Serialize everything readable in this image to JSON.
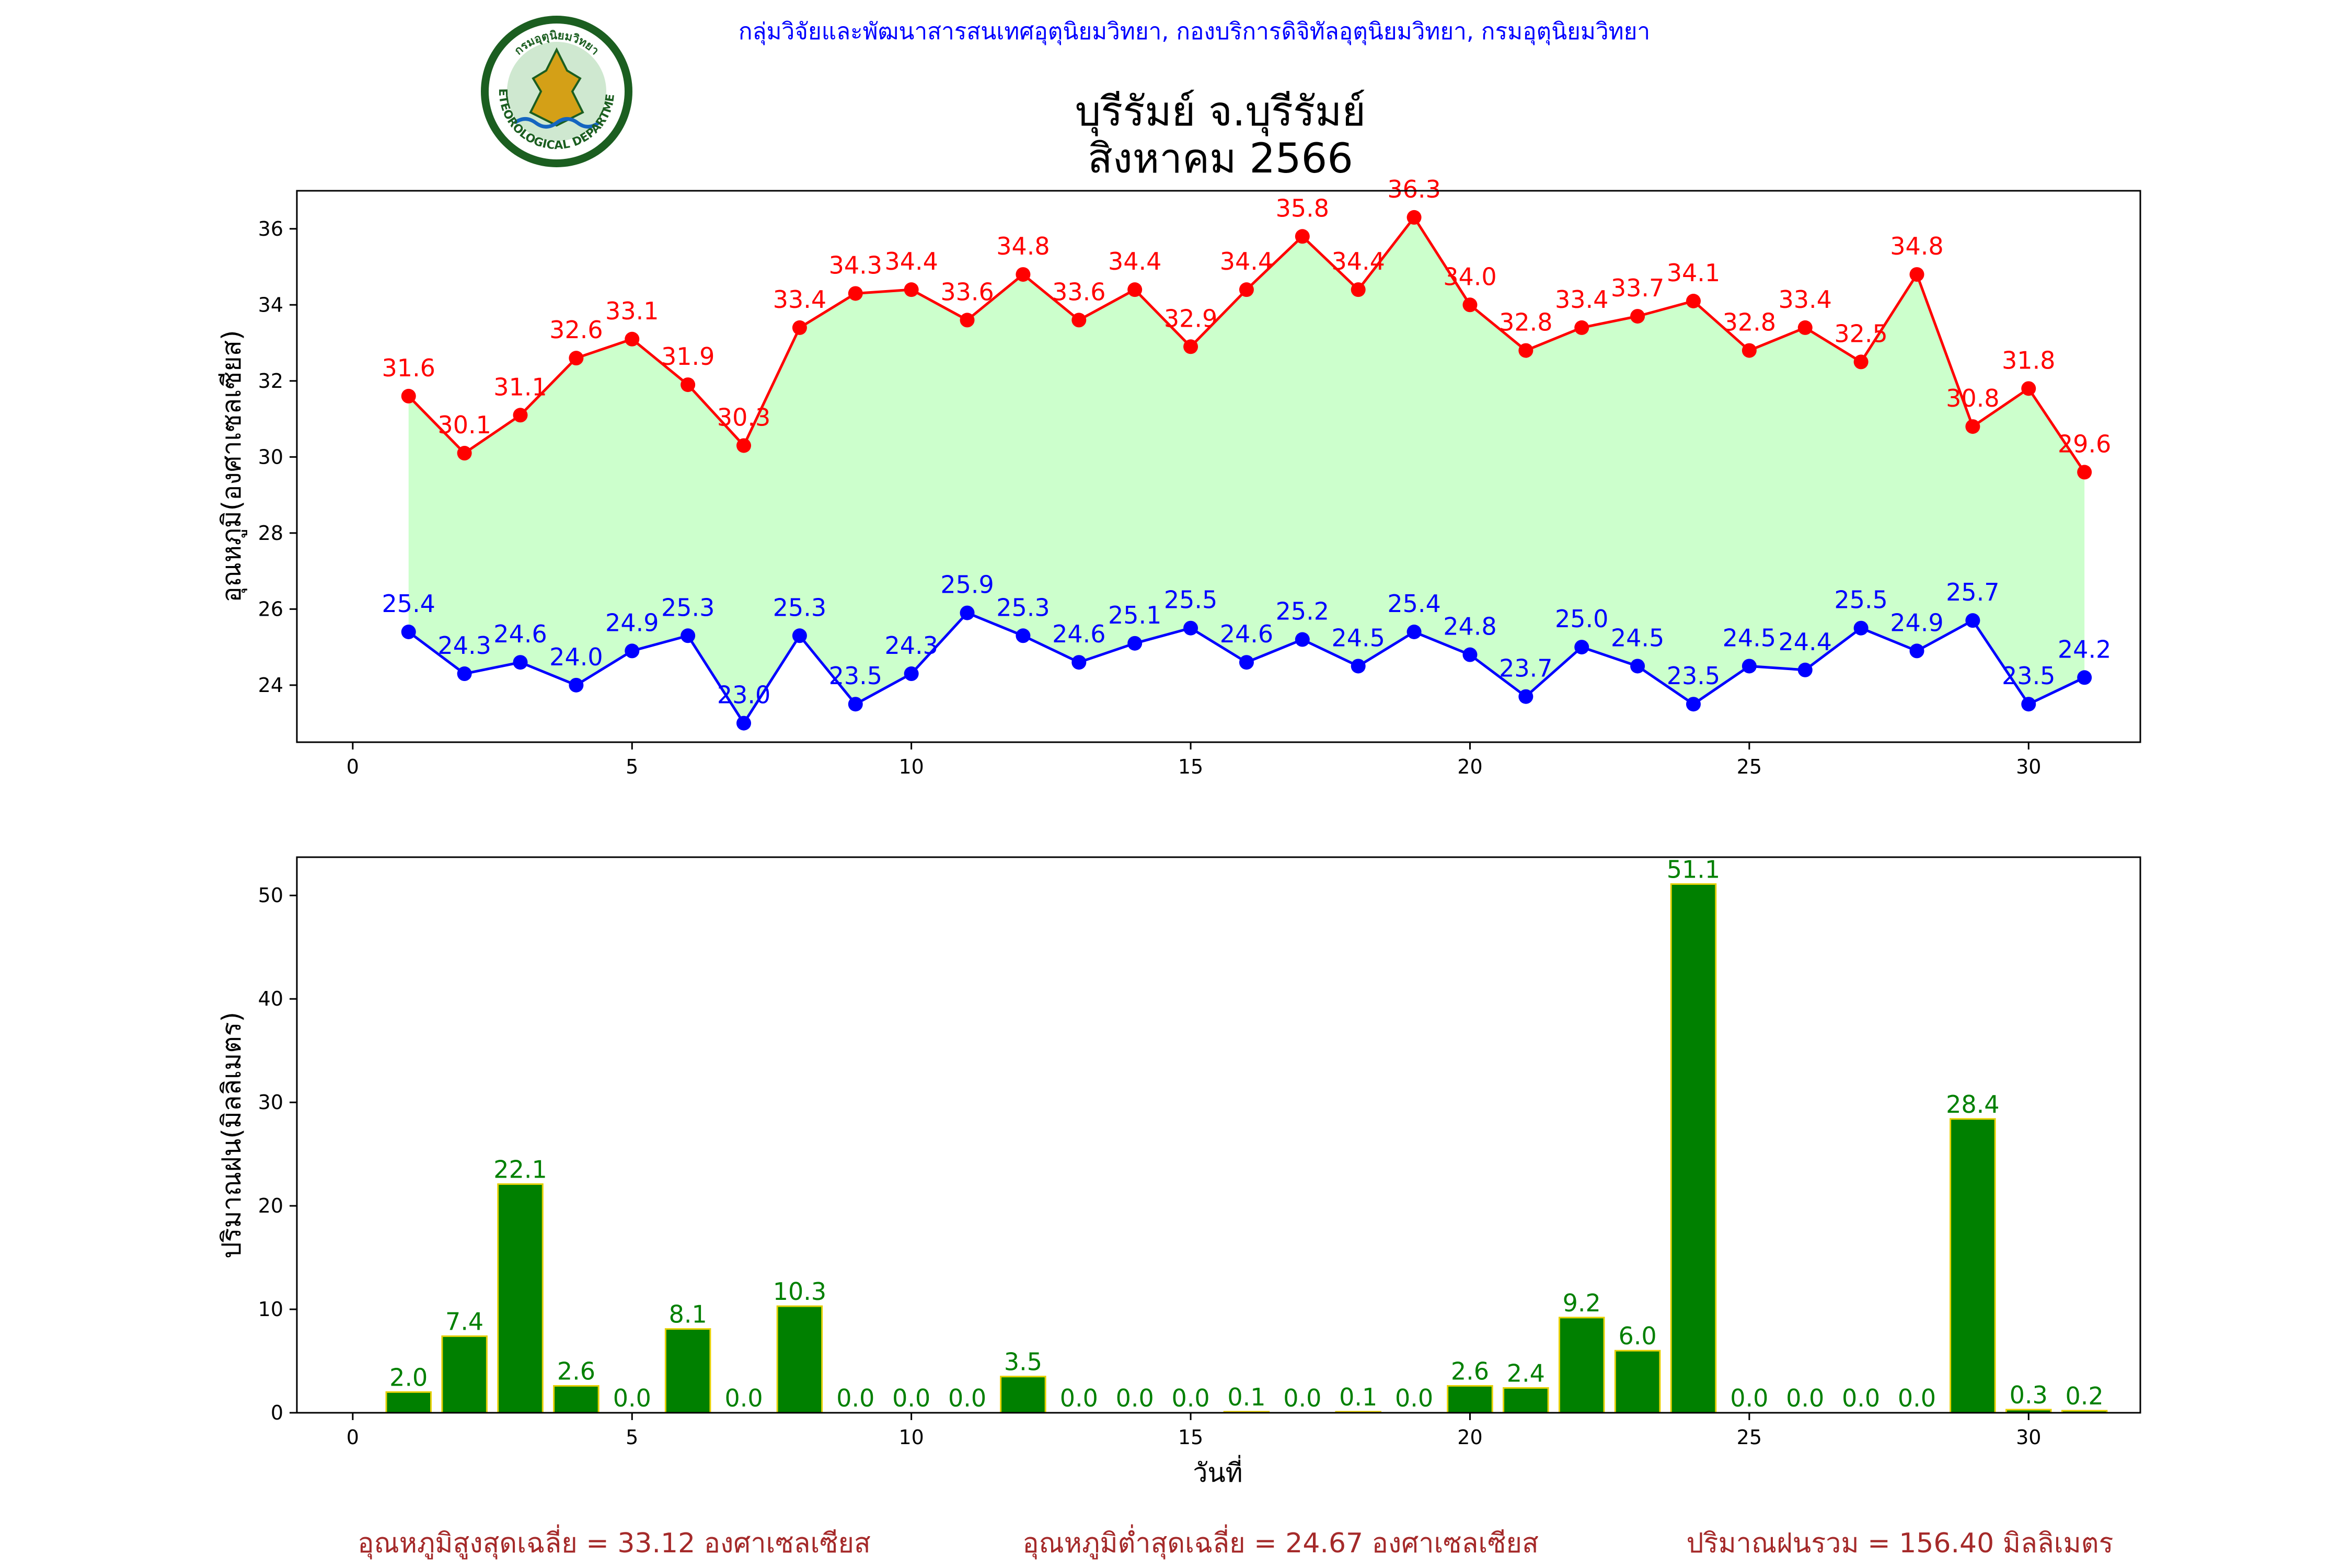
{
  "header": {
    "department": "กลุ่มวิจัยและพัฒนาสารสนเทศอุตุนิยมวิทยา, กองบริการดิจิทัลอุตุนิยมวิทยา, กรมอุตุนิยมวิทยา",
    "title_line1": "บุรีรัมย์ จ.บุรีรัมย์",
    "title_line2": "สิงหาคม 2566",
    "logo_text_top": "กรมอุตุนิยมวิทยา",
    "logo_text_bottom": "METEOROLOGICAL DEPARTMENT"
  },
  "colors": {
    "max_line": "#ff0000",
    "min_line": "#0000ff",
    "fill_between": "#ccffcc",
    "rain_bar": "#008000",
    "rain_bar_edge": "#e6d000",
    "summary_text": "#a52a2a"
  },
  "chart_data": [
    {
      "type": "line",
      "ylabel": "อุณหภูมิ(องศาเซลเซียส)",
      "xlabel": "",
      "xlim": [
        -1,
        32
      ],
      "ylim": [
        22.5,
        37
      ],
      "xticks": [
        0,
        5,
        10,
        15,
        20,
        25,
        30
      ],
      "yticks": [
        24,
        26,
        28,
        30,
        32,
        34,
        36
      ],
      "grid": false,
      "fill_between": true,
      "x": [
        1,
        2,
        3,
        4,
        5,
        6,
        7,
        8,
        9,
        10,
        11,
        12,
        13,
        14,
        15,
        16,
        17,
        18,
        19,
        20,
        21,
        22,
        23,
        24,
        25,
        26,
        27,
        28,
        29,
        30,
        31
      ],
      "series": [
        {
          "values": [
            31.6,
            30.1,
            31.1,
            32.6,
            33.1,
            31.9,
            30.3,
            33.4,
            34.3,
            34.4,
            33.6,
            34.8,
            33.6,
            34.4,
            32.9,
            34.4,
            35.8,
            34.4,
            36.3,
            34.0,
            32.8,
            33.4,
            33.7,
            34.1,
            32.8,
            33.4,
            32.5,
            34.8,
            30.8,
            31.8,
            29.6
          ]
        },
        {
          "values": [
            25.4,
            24.3,
            24.6,
            24.0,
            24.9,
            25.3,
            23.0,
            25.3,
            23.5,
            24.3,
            25.9,
            25.3,
            24.6,
            25.1,
            25.5,
            24.6,
            25.2,
            24.5,
            25.4,
            24.8,
            23.7,
            25.0,
            24.5,
            23.5,
            24.5,
            24.4,
            25.5,
            24.9,
            25.7,
            23.5,
            24.2
          ]
        }
      ]
    },
    {
      "type": "bar",
      "ylabel": "ปริมาณฝน(มิลลิเมตร)",
      "xlabel": "วันที่",
      "xlim": [
        -1,
        32
      ],
      "ylim": [
        0,
        53.7
      ],
      "xticks": [
        0,
        5,
        10,
        15,
        20,
        25,
        30
      ],
      "yticks": [
        0,
        10,
        20,
        30,
        40,
        50
      ],
      "grid": false,
      "x": [
        1,
        2,
        3,
        4,
        5,
        6,
        7,
        8,
        9,
        10,
        11,
        12,
        13,
        14,
        15,
        16,
        17,
        18,
        19,
        20,
        21,
        22,
        23,
        24,
        25,
        26,
        27,
        28,
        29,
        30,
        31
      ],
      "values": [
        2.0,
        7.4,
        22.1,
        2.6,
        0.0,
        8.1,
        0.0,
        10.3,
        0.0,
        0.0,
        0.0,
        3.5,
        0.0,
        0.0,
        0.0,
        0.1,
        0.0,
        0.1,
        0.0,
        2.6,
        2.4,
        9.2,
        6.0,
        51.1,
        0.0,
        0.0,
        0.0,
        0.0,
        28.4,
        0.3,
        0.2
      ]
    }
  ],
  "summary": {
    "avg_max": "อุณหภูมิสูงสุดเฉลี่ย = 33.12 องศาเซลเซียส",
    "avg_min": "อุณหภูมิต่ำสุดเฉลี่ย = 24.67 องศาเซลเซียส",
    "total_rain": "ปริมาณฝนรวม = 156.40 มิลลิเมตร"
  }
}
